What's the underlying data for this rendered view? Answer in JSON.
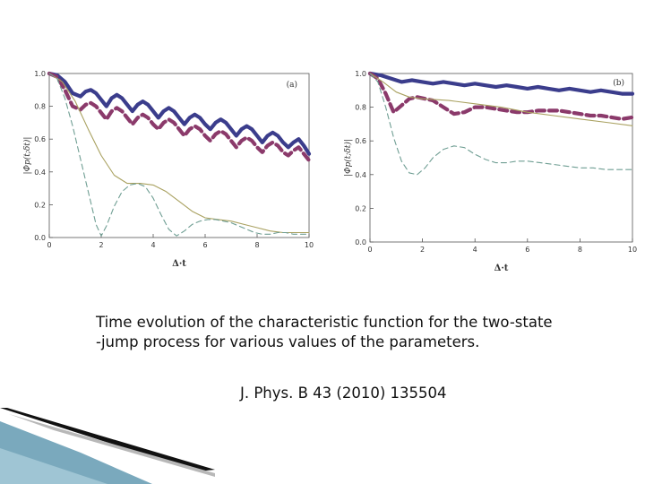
{
  "caption": "Time evolution of the characteristic function for the two-state\n-jump process for various values of the parameters.",
  "reference": "J. Phys. B 43 (2010) 135504",
  "colors": {
    "blue": "#3b3d8c",
    "purple": "#8b3a6b",
    "olive": "#a9a160",
    "green_dash": "#6f9e93",
    "ribbon_dark": "#111111",
    "ribbon_teal": "#7aa9bd"
  },
  "chart_data": [
    {
      "type": "line",
      "panel_label": "(a)",
      "xlabel": "Δ·t",
      "ylabel": "|Φp(t;δt)|",
      "xlim": [
        0,
        10
      ],
      "ylim": [
        0,
        1
      ],
      "x_ticks": [
        "0",
        "2",
        "4",
        "6",
        "8",
        "10"
      ],
      "y_ticks": [
        "0.0",
        "0.2",
        "0.4",
        "0.6",
        "0.8",
        "1.0"
      ],
      "series": [
        {
          "style": "thick-solid",
          "color": "blue",
          "x": [
            0,
            0.3,
            0.6,
            0.9,
            1.2,
            1.4,
            1.6,
            1.8,
            2.0,
            2.2,
            2.4,
            2.6,
            2.8,
            3.0,
            3.2,
            3.4,
            3.6,
            3.8,
            4.0,
            4.2,
            4.4,
            4.6,
            4.8,
            5.0,
            5.2,
            5.4,
            5.6,
            5.8,
            6.0,
            6.2,
            6.4,
            6.6,
            6.8,
            7.0,
            7.2,
            7.4,
            7.6,
            7.8,
            8.0,
            8.2,
            8.4,
            8.6,
            8.8,
            9.0,
            9.2,
            9.4,
            9.6,
            9.8,
            10.0
          ],
          "values": [
            1.0,
            0.99,
            0.95,
            0.88,
            0.86,
            0.89,
            0.9,
            0.88,
            0.84,
            0.8,
            0.85,
            0.87,
            0.85,
            0.81,
            0.77,
            0.81,
            0.83,
            0.81,
            0.77,
            0.73,
            0.77,
            0.79,
            0.77,
            0.73,
            0.69,
            0.73,
            0.75,
            0.73,
            0.69,
            0.66,
            0.7,
            0.72,
            0.7,
            0.66,
            0.62,
            0.66,
            0.68,
            0.66,
            0.62,
            0.58,
            0.62,
            0.64,
            0.62,
            0.58,
            0.55,
            0.58,
            0.6,
            0.56,
            0.51
          ]
        },
        {
          "style": "thick-dashed",
          "color": "purple",
          "x": [
            0,
            0.3,
            0.6,
            0.9,
            1.2,
            1.4,
            1.6,
            1.8,
            2.0,
            2.2,
            2.4,
            2.6,
            2.8,
            3.0,
            3.2,
            3.4,
            3.6,
            3.8,
            4.0,
            4.2,
            4.4,
            4.6,
            4.8,
            5.0,
            5.2,
            5.4,
            5.6,
            5.8,
            6.0,
            6.2,
            6.4,
            6.6,
            6.8,
            7.0,
            7.2,
            7.4,
            7.6,
            7.8,
            8.0,
            8.2,
            8.4,
            8.6,
            8.8,
            9.0,
            9.2,
            9.4,
            9.6,
            9.8,
            10.0
          ],
          "values": [
            1.0,
            0.98,
            0.9,
            0.8,
            0.78,
            0.81,
            0.82,
            0.8,
            0.76,
            0.72,
            0.77,
            0.79,
            0.77,
            0.73,
            0.69,
            0.73,
            0.75,
            0.73,
            0.69,
            0.66,
            0.7,
            0.72,
            0.7,
            0.66,
            0.62,
            0.66,
            0.68,
            0.66,
            0.62,
            0.59,
            0.63,
            0.65,
            0.63,
            0.59,
            0.55,
            0.59,
            0.61,
            0.59,
            0.55,
            0.52,
            0.56,
            0.58,
            0.56,
            0.52,
            0.5,
            0.53,
            0.55,
            0.51,
            0.47
          ]
        },
        {
          "style": "thin-solid",
          "color": "olive",
          "x": [
            0,
            0.5,
            1.0,
            1.5,
            2.0,
            2.5,
            3.0,
            3.5,
            4.0,
            4.5,
            5.0,
            5.5,
            6.0,
            6.5,
            7.0,
            7.5,
            8.0,
            8.5,
            9.0,
            9.5,
            10.0
          ],
          "values": [
            1.0,
            0.95,
            0.83,
            0.66,
            0.5,
            0.38,
            0.33,
            0.33,
            0.32,
            0.28,
            0.22,
            0.16,
            0.12,
            0.11,
            0.1,
            0.08,
            0.06,
            0.04,
            0.03,
            0.03,
            0.03
          ]
        },
        {
          "style": "thin-dashed",
          "color": "green_dash",
          "x": [
            0,
            0.3,
            0.6,
            0.9,
            1.2,
            1.5,
            1.8,
            2.0,
            2.2,
            2.5,
            2.8,
            3.1,
            3.4,
            3.7,
            4.0,
            4.3,
            4.6,
            4.9,
            5.2,
            5.5,
            5.8,
            6.1,
            6.4,
            6.7,
            7.0,
            7.3,
            7.6,
            7.9,
            8.2,
            8.5,
            8.8,
            9.1,
            9.4,
            9.7,
            10.0
          ],
          "values": [
            1.0,
            0.97,
            0.85,
            0.68,
            0.48,
            0.28,
            0.08,
            0.01,
            0.07,
            0.19,
            0.28,
            0.32,
            0.33,
            0.31,
            0.24,
            0.14,
            0.05,
            0.01,
            0.04,
            0.08,
            0.1,
            0.11,
            0.11,
            0.1,
            0.09,
            0.07,
            0.05,
            0.03,
            0.02,
            0.02,
            0.03,
            0.03,
            0.02,
            0.02,
            0.02
          ]
        }
      ]
    },
    {
      "type": "line",
      "panel_label": "(b)",
      "xlabel": "Δ·t",
      "ylabel": "|Φp(t;δt)|",
      "xlim": [
        0,
        10
      ],
      "ylim": [
        0,
        1
      ],
      "x_ticks": [
        "0",
        "2",
        "4",
        "6",
        "8",
        "10"
      ],
      "y_ticks": [
        "0.0",
        "0.2",
        "0.4",
        "0.6",
        "0.8",
        "1.0"
      ],
      "series": [
        {
          "style": "thick-solid",
          "color": "blue",
          "x": [
            0,
            0.4,
            0.8,
            1.2,
            1.6,
            2.0,
            2.4,
            2.8,
            3.2,
            3.6,
            4.0,
            4.4,
            4.8,
            5.2,
            5.6,
            6.0,
            6.4,
            6.8,
            7.2,
            7.6,
            8.0,
            8.4,
            8.8,
            9.2,
            9.6,
            10.0
          ],
          "values": [
            1.0,
            0.99,
            0.97,
            0.95,
            0.96,
            0.95,
            0.94,
            0.95,
            0.94,
            0.93,
            0.94,
            0.93,
            0.92,
            0.93,
            0.92,
            0.91,
            0.92,
            0.91,
            0.9,
            0.91,
            0.9,
            0.89,
            0.9,
            0.89,
            0.88,
            0.88
          ]
        },
        {
          "style": "thick-dashed",
          "color": "purple",
          "x": [
            0,
            0.3,
            0.6,
            0.9,
            1.2,
            1.5,
            1.8,
            2.1,
            2.4,
            2.8,
            3.2,
            3.6,
            4.0,
            4.4,
            4.8,
            5.2,
            5.6,
            6.0,
            6.4,
            6.8,
            7.2,
            7.6,
            8.0,
            8.4,
            8.8,
            9.2,
            9.6,
            10.0
          ],
          "values": [
            1.0,
            0.97,
            0.88,
            0.77,
            0.81,
            0.85,
            0.86,
            0.85,
            0.84,
            0.8,
            0.76,
            0.77,
            0.8,
            0.8,
            0.79,
            0.78,
            0.77,
            0.77,
            0.78,
            0.78,
            0.78,
            0.77,
            0.76,
            0.75,
            0.75,
            0.74,
            0.73,
            0.74
          ]
        },
        {
          "style": "thin-solid",
          "color": "olive",
          "x": [
            0,
            0.5,
            1.0,
            1.5,
            2.0,
            3.0,
            4.0,
            5.0,
            6.0,
            7.0,
            8.0,
            9.0,
            10.0
          ],
          "values": [
            1.0,
            0.95,
            0.89,
            0.86,
            0.85,
            0.84,
            0.82,
            0.8,
            0.77,
            0.75,
            0.73,
            0.71,
            0.69
          ]
        },
        {
          "style": "thin-dashed",
          "color": "green_dash",
          "x": [
            0,
            0.3,
            0.6,
            0.9,
            1.2,
            1.5,
            1.8,
            2.1,
            2.4,
            2.8,
            3.2,
            3.6,
            4.0,
            4.4,
            4.8,
            5.2,
            5.6,
            6.0,
            6.5,
            7.0,
            7.5,
            8.0,
            8.5,
            9.0,
            9.5,
            10.0
          ],
          "values": [
            1.0,
            0.95,
            0.8,
            0.62,
            0.48,
            0.41,
            0.4,
            0.44,
            0.5,
            0.55,
            0.57,
            0.56,
            0.52,
            0.49,
            0.47,
            0.47,
            0.48,
            0.48,
            0.47,
            0.46,
            0.45,
            0.44,
            0.44,
            0.43,
            0.43,
            0.43
          ]
        }
      ]
    }
  ]
}
